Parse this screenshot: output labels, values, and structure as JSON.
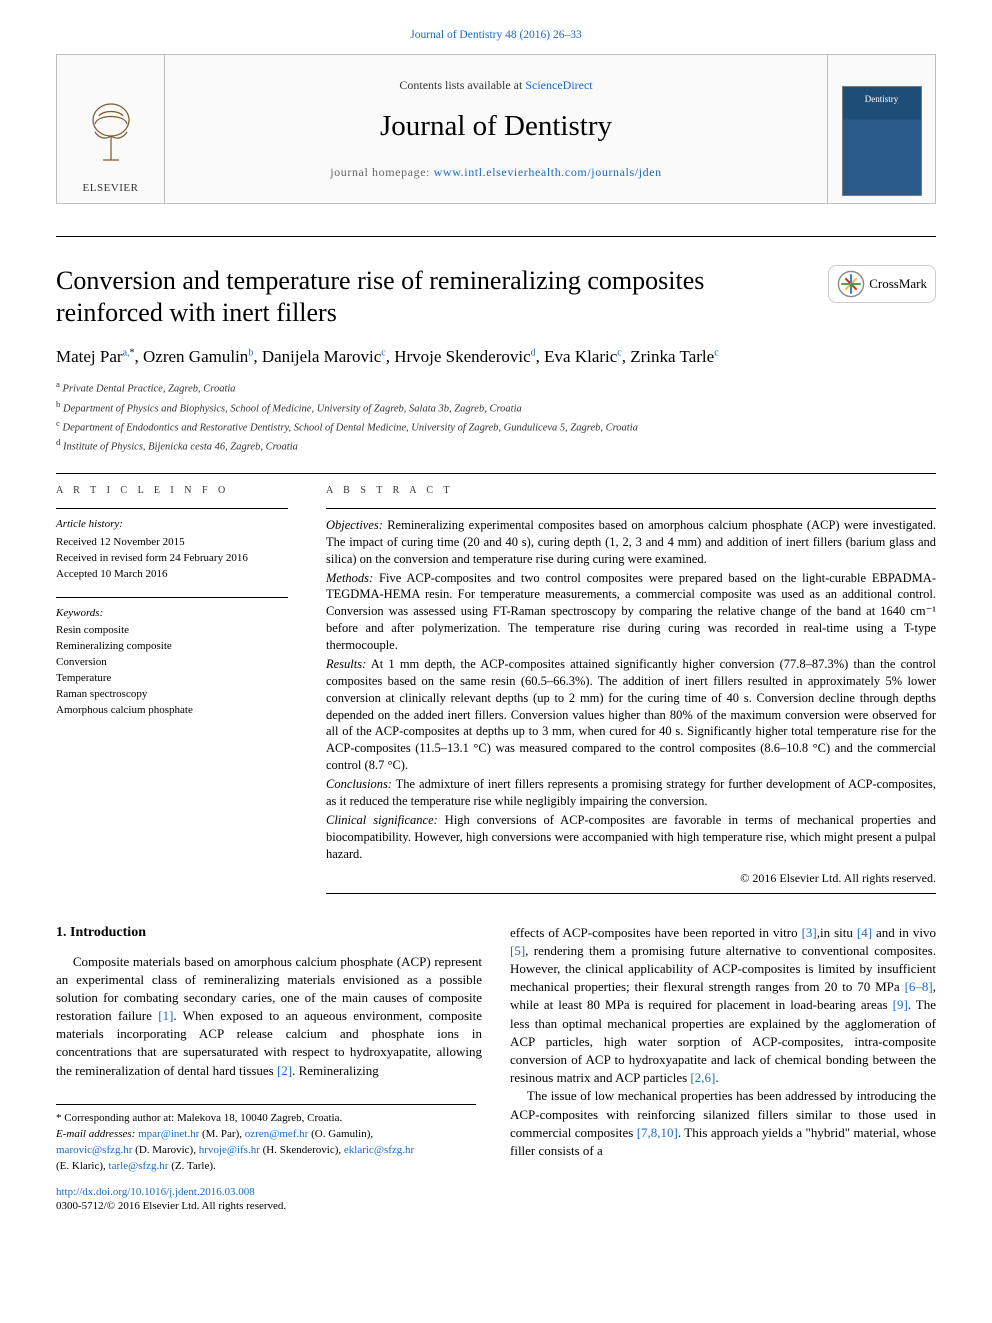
{
  "header": {
    "top_link": "Journal of Dentistry 48 (2016) 26–33",
    "contents_prefix": "Contents lists available at ",
    "sciencedirect": "ScienceDirect",
    "journal_title": "Journal of Dentistry",
    "homepage_prefix": "journal homepage: ",
    "homepage_url": "www.intl.elsevierhealth.com/journals/jden",
    "publisher_logo_label": "ELSEVIER",
    "cover_title": "Dentistry"
  },
  "crossmark_label": "CrossMark",
  "article": {
    "title": "Conversion and temperature rise of remineralizing composites reinforced with inert fillers",
    "authors_html": "Matej Par<sup>a,</sup><sup class=\"ast\">*</sup>, Ozren Gamulin<sup>b</sup>, Danijela Marovic<sup>c</sup>, Hrvoje Skenderovic<sup>d</sup>, Eva Klaric<sup>c</sup>, Zrinka Tarle<sup>c</sup>",
    "affiliations": [
      "a Private Dental Practice, Zagreb, Croatia",
      "b Department of Physics and Biophysics, School of Medicine, University of Zagreb, Salata 3b, Zagreb, Croatia",
      "c Department of Endodontics and Restorative Dentistry, School of Dental Medicine, University of Zagreb, Gunduliceva 5, Zagreb, Croatia",
      "d Institute of Physics, Bijenicka cesta 46, Zagreb, Croatia"
    ]
  },
  "article_info": {
    "label": "A R T I C L E   I N F O",
    "history_head": "Article history:",
    "history": [
      "Received 12 November 2015",
      "Received in revised form 24 February 2016",
      "Accepted 10 March 2016"
    ],
    "keywords_head": "Keywords:",
    "keywords": [
      "Resin composite",
      "Remineralizing composite",
      "Conversion",
      "Temperature",
      "Raman spectroscopy",
      "Amorphous calcium phosphate"
    ]
  },
  "abstract": {
    "label": "A B S T R A C T",
    "objectives_label": "Objectives:",
    "objectives": " Remineralizing experimental composites based on amorphous calcium phosphate (ACP) were investigated. The impact of curing time (20 and 40 s), curing depth (1, 2, 3 and 4 mm) and addition of inert fillers (barium glass and silica) on the conversion and temperature rise during curing were examined.",
    "methods_label": "Methods:",
    "methods": " Five ACP-composites and two control composites were prepared based on the light-curable EBPADMA-TEGDMA-HEMA resin. For temperature measurements, a commercial composite was used as an additional control. Conversion was assessed using FT-Raman spectroscopy by comparing the relative change of the band at 1640 cm⁻¹ before and after polymerization. The temperature rise during curing was recorded in real-time using a T-type thermocouple.",
    "results_label": "Results:",
    "results": " At 1 mm depth, the ACP-composites attained significantly higher conversion (77.8–87.3%) than the control composites based on the same resin (60.5–66.3%). The addition of inert fillers resulted in approximately 5% lower conversion at clinically relevant depths (up to 2 mm) for the curing time of 40 s. Conversion decline through depths depended on the added inert fillers. Conversion values higher than 80% of the maximum conversion were observed for all of the ACP-composites at depths up to 3 mm, when cured for 40 s. Significantly higher total temperature rise for the ACP-composites (11.5–13.1 °C) was measured compared to the control composites (8.6–10.8 °C) and the commercial control (8.7 °C).",
    "conclusions_label": "Conclusions:",
    "conclusions": " The admixture of inert fillers represents a promising strategy for further development of ACP-composites, as it reduced the temperature rise while negligibly impairing the conversion.",
    "clinical_label": "Clinical significance:",
    "clinical": " High conversions of ACP-composites are favorable in terms of mechanical properties and biocompatibility. However, high conversions were accompanied with high temperature rise, which might present a pulpal hazard.",
    "copyright": "© 2016 Elsevier Ltd. All rights reserved."
  },
  "body": {
    "intro_heading": "1. Introduction",
    "col1_p1a": "Composite materials based on amorphous calcium phosphate (ACP) represent an experimental class of remineralizing materials envisioned as a possible solution for combating secondary caries, one of the main causes of composite restoration failure ",
    "col1_cite1": "[1]",
    "col1_p1b": ". When exposed to an aqueous environment, composite materials incorporating ACP release calcium and phosphate ions in concentrations that are supersaturated with respect to hydroxyapatite, allowing the remineralization of dental hard tissues ",
    "col1_cite2": "[2]",
    "col1_p1c": ". Remineralizing",
    "col2_p1a": "effects of ACP-composites have been reported in vitro ",
    "col2_cite3": "[3]",
    "col2_p1a2": ",in situ ",
    "col2_cite4": "[4]",
    "col2_p1b": " and in vivo ",
    "col2_cite5": "[5]",
    "col2_p1c": ", rendering them a promising future alternative to conventional composites. However, the clinical applicability of ACP-composites is limited by insufficient mechanical properties; their flexural strength ranges from 20 to 70 MPa ",
    "col2_cite68": "[6–8]",
    "col2_p1d": ", while at least 80 MPa is required for placement in load-bearing areas ",
    "col2_cite9": "[9]",
    "col2_p1e": ". The less than optimal mechanical properties are explained by the agglomeration of ACP particles, high water sorption of ACP-composites, intra-composite conversion of ACP to hydroxyapatite and lack of chemical bonding between the resinous matrix and ACP particles ",
    "col2_cite26": "[2,6]",
    "col2_p1f": ".",
    "col2_p2a": "The issue of low mechanical properties has been addressed by introducing the ACP-composites with reinforcing silanized fillers similar to those used in commercial composites ",
    "col2_cite7810": "[7,8,10]",
    "col2_p2b": ". This approach yields a \"hybrid\" material, whose filler consists of a"
  },
  "correspondence": {
    "line1": "* Corresponding author at: Malekova 18, 10040 Zagreb, Croatia.",
    "emails_label": "E-mail addresses: ",
    "emails": [
      {
        "addr": "mpar@inet.hr",
        "who": " (M. Par), "
      },
      {
        "addr": "ozren@mef.hr",
        "who": " (O. Gamulin), "
      },
      {
        "addr": "marovic@sfzg.hr",
        "who": " (D. Marovic), "
      },
      {
        "addr": "hrvoje@ifs.hr",
        "who": " (H. Skenderovic), "
      },
      {
        "addr": "eklaric@sfzg.hr",
        "who": " (E. Klaric), "
      },
      {
        "addr": "tarle@sfzg.hr",
        "who": " (Z. Tarle)."
      }
    ]
  },
  "doi": {
    "url": "http://dx.doi.org/10.1016/j.jdent.2016.03.008",
    "issn_copyright": "0300-5712/© 2016 Elsevier Ltd. All rights reserved."
  },
  "colors": {
    "link": "#1a6bc4",
    "border": "#bfbfbf",
    "text": "#000000"
  }
}
